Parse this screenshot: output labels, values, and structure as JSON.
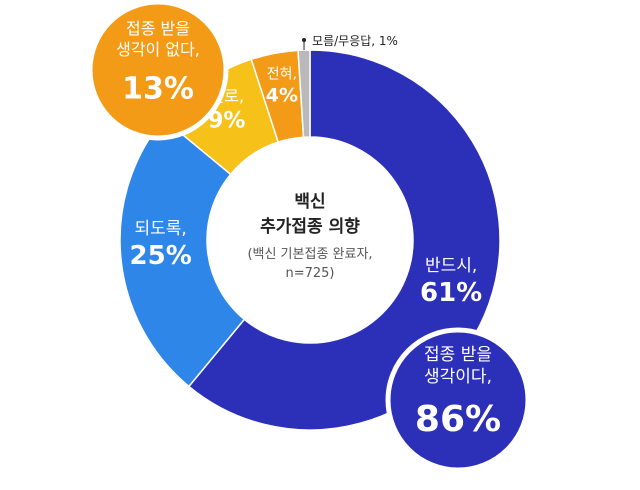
{
  "chart_data": {
    "type": "pie",
    "title": "백신 추가접종 의향",
    "title_lines": [
      "백신",
      "추가접종 의향"
    ],
    "subtitle_lines": [
      "(백신 기본접종 완료자,",
      "n=725)"
    ],
    "donut": true,
    "slices": [
      {
        "name": "반드시,",
        "value": 61,
        "value_text": "61%",
        "color": "#2c2fb8"
      },
      {
        "name": "되도록,",
        "value": 25,
        "value_text": "25%",
        "color": "#2e86e8"
      },
      {
        "name": "별로,",
        "value": 9,
        "value_text": "9%",
        "color": "#f6c21a"
      },
      {
        "name": "전혀,",
        "value": 4,
        "value_text": "4%",
        "color": "#f39a17"
      },
      {
        "name": "모름/무응답, 1%",
        "value": 1,
        "value_text": "1%",
        "color": "#b9b9b9"
      }
    ],
    "groups": [
      {
        "lines": [
          "접종 받을",
          "생각이다,"
        ],
        "value_text": "86%",
        "value": 86,
        "color": "#2c2fb8"
      },
      {
        "lines": [
          "접종 받을",
          "생각이 없다,"
        ],
        "value_text": "13%",
        "value": 13,
        "color": "#f39a17"
      }
    ]
  }
}
